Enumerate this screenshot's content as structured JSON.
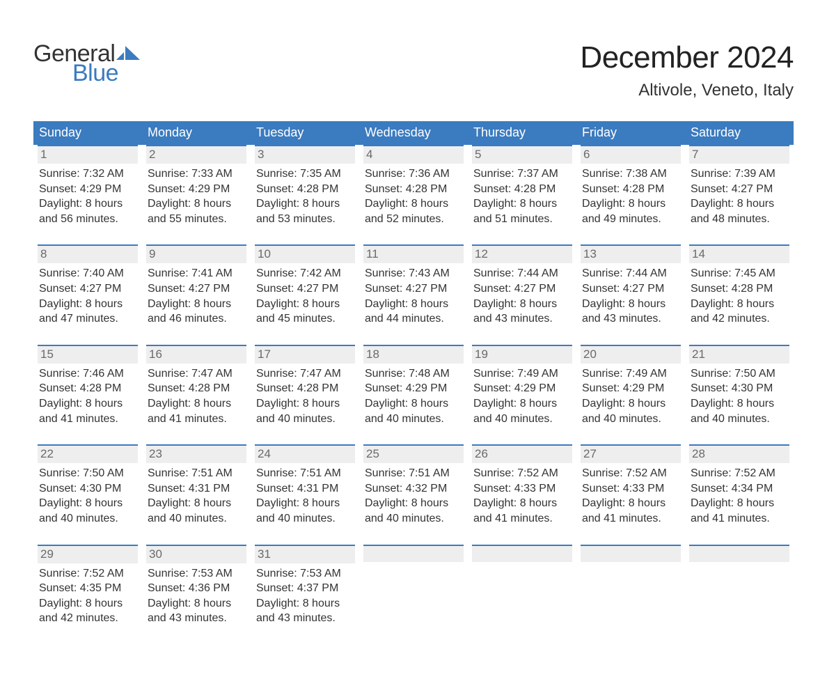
{
  "logo": {
    "line1": "General",
    "line2": "Blue",
    "mark_color": "#3b7bbf"
  },
  "title": "December 2024",
  "location": "Altivole, Veneto, Italy",
  "colors": {
    "header_bg": "#3b7bbf",
    "header_text": "#ffffff",
    "daynum_bg": "#eeeeee",
    "daynum_text": "#6a6a6a",
    "day_border": "#3b7bbf",
    "body_text": "#333333",
    "page_bg": "#ffffff"
  },
  "fonts": {
    "title_size_pt": 33,
    "location_size_pt": 18,
    "header_size_pt": 14,
    "body_size_pt": 12
  },
  "columns": [
    "Sunday",
    "Monday",
    "Tuesday",
    "Wednesday",
    "Thursday",
    "Friday",
    "Saturday"
  ],
  "labels": {
    "sunrise": "Sunrise:",
    "sunset": "Sunset:",
    "daylight": "Daylight:"
  },
  "weeks": [
    [
      {
        "n": "1",
        "sunrise": "7:32 AM",
        "sunset": "4:29 PM",
        "day_h": "8 hours",
        "day_m": "and 56 minutes."
      },
      {
        "n": "2",
        "sunrise": "7:33 AM",
        "sunset": "4:29 PM",
        "day_h": "8 hours",
        "day_m": "and 55 minutes."
      },
      {
        "n": "3",
        "sunrise": "7:35 AM",
        "sunset": "4:28 PM",
        "day_h": "8 hours",
        "day_m": "and 53 minutes."
      },
      {
        "n": "4",
        "sunrise": "7:36 AM",
        "sunset": "4:28 PM",
        "day_h": "8 hours",
        "day_m": "and 52 minutes."
      },
      {
        "n": "5",
        "sunrise": "7:37 AM",
        "sunset": "4:28 PM",
        "day_h": "8 hours",
        "day_m": "and 51 minutes."
      },
      {
        "n": "6",
        "sunrise": "7:38 AM",
        "sunset": "4:28 PM",
        "day_h": "8 hours",
        "day_m": "and 49 minutes."
      },
      {
        "n": "7",
        "sunrise": "7:39 AM",
        "sunset": "4:27 PM",
        "day_h": "8 hours",
        "day_m": "and 48 minutes."
      }
    ],
    [
      {
        "n": "8",
        "sunrise": "7:40 AM",
        "sunset": "4:27 PM",
        "day_h": "8 hours",
        "day_m": "and 47 minutes."
      },
      {
        "n": "9",
        "sunrise": "7:41 AM",
        "sunset": "4:27 PM",
        "day_h": "8 hours",
        "day_m": "and 46 minutes."
      },
      {
        "n": "10",
        "sunrise": "7:42 AM",
        "sunset": "4:27 PM",
        "day_h": "8 hours",
        "day_m": "and 45 minutes."
      },
      {
        "n": "11",
        "sunrise": "7:43 AM",
        "sunset": "4:27 PM",
        "day_h": "8 hours",
        "day_m": "and 44 minutes."
      },
      {
        "n": "12",
        "sunrise": "7:44 AM",
        "sunset": "4:27 PM",
        "day_h": "8 hours",
        "day_m": "and 43 minutes."
      },
      {
        "n": "13",
        "sunrise": "7:44 AM",
        "sunset": "4:27 PM",
        "day_h": "8 hours",
        "day_m": "and 43 minutes."
      },
      {
        "n": "14",
        "sunrise": "7:45 AM",
        "sunset": "4:28 PM",
        "day_h": "8 hours",
        "day_m": "and 42 minutes."
      }
    ],
    [
      {
        "n": "15",
        "sunrise": "7:46 AM",
        "sunset": "4:28 PM",
        "day_h": "8 hours",
        "day_m": "and 41 minutes."
      },
      {
        "n": "16",
        "sunrise": "7:47 AM",
        "sunset": "4:28 PM",
        "day_h": "8 hours",
        "day_m": "and 41 minutes."
      },
      {
        "n": "17",
        "sunrise": "7:47 AM",
        "sunset": "4:28 PM",
        "day_h": "8 hours",
        "day_m": "and 40 minutes."
      },
      {
        "n": "18",
        "sunrise": "7:48 AM",
        "sunset": "4:29 PM",
        "day_h": "8 hours",
        "day_m": "and 40 minutes."
      },
      {
        "n": "19",
        "sunrise": "7:49 AM",
        "sunset": "4:29 PM",
        "day_h": "8 hours",
        "day_m": "and 40 minutes."
      },
      {
        "n": "20",
        "sunrise": "7:49 AM",
        "sunset": "4:29 PM",
        "day_h": "8 hours",
        "day_m": "and 40 minutes."
      },
      {
        "n": "21",
        "sunrise": "7:50 AM",
        "sunset": "4:30 PM",
        "day_h": "8 hours",
        "day_m": "and 40 minutes."
      }
    ],
    [
      {
        "n": "22",
        "sunrise": "7:50 AM",
        "sunset": "4:30 PM",
        "day_h": "8 hours",
        "day_m": "and 40 minutes."
      },
      {
        "n": "23",
        "sunrise": "7:51 AM",
        "sunset": "4:31 PM",
        "day_h": "8 hours",
        "day_m": "and 40 minutes."
      },
      {
        "n": "24",
        "sunrise": "7:51 AM",
        "sunset": "4:31 PM",
        "day_h": "8 hours",
        "day_m": "and 40 minutes."
      },
      {
        "n": "25",
        "sunrise": "7:51 AM",
        "sunset": "4:32 PM",
        "day_h": "8 hours",
        "day_m": "and 40 minutes."
      },
      {
        "n": "26",
        "sunrise": "7:52 AM",
        "sunset": "4:33 PM",
        "day_h": "8 hours",
        "day_m": "and 41 minutes."
      },
      {
        "n": "27",
        "sunrise": "7:52 AM",
        "sunset": "4:33 PM",
        "day_h": "8 hours",
        "day_m": "and 41 minutes."
      },
      {
        "n": "28",
        "sunrise": "7:52 AM",
        "sunset": "4:34 PM",
        "day_h": "8 hours",
        "day_m": "and 41 minutes."
      }
    ],
    [
      {
        "n": "29",
        "sunrise": "7:52 AM",
        "sunset": "4:35 PM",
        "day_h": "8 hours",
        "day_m": "and 42 minutes."
      },
      {
        "n": "30",
        "sunrise": "7:53 AM",
        "sunset": "4:36 PM",
        "day_h": "8 hours",
        "day_m": "and 43 minutes."
      },
      {
        "n": "31",
        "sunrise": "7:53 AM",
        "sunset": "4:37 PM",
        "day_h": "8 hours",
        "day_m": "and 43 minutes."
      },
      null,
      null,
      null,
      null
    ]
  ]
}
